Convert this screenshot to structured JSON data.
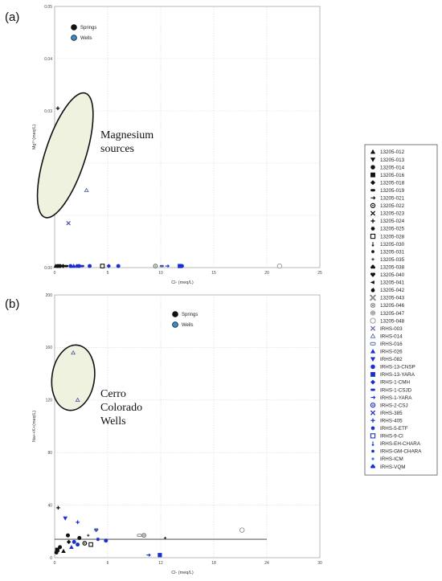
{
  "figure": {
    "panels": [
      "(a)",
      "(b)"
    ]
  },
  "legend": {
    "title": "",
    "items": [
      {
        "label": "13205-012",
        "marker": "triangle-up",
        "color": "#111111"
      },
      {
        "label": "13205-013",
        "marker": "triangle-down",
        "color": "#111111"
      },
      {
        "label": "13205-014",
        "marker": "circle",
        "color": "#111111"
      },
      {
        "label": "13205-016",
        "marker": "square",
        "color": "#111111"
      },
      {
        "label": "13205-018",
        "marker": "diamond",
        "color": "#111111"
      },
      {
        "label": "13205-019",
        "marker": "dash",
        "color": "#111111"
      },
      {
        "label": "13205-021",
        "marker": "arrow",
        "color": "#111111"
      },
      {
        "label": "13205-022",
        "marker": "ring",
        "color": "#111111"
      },
      {
        "label": "13205-023",
        "marker": "x",
        "color": "#111111"
      },
      {
        "label": "13205-024",
        "marker": "plus",
        "color": "#111111"
      },
      {
        "label": "13205-025",
        "marker": "burst",
        "color": "#111111"
      },
      {
        "label": "13205-028",
        "marker": "square-open",
        "color": "#111111"
      },
      {
        "label": "13205-030",
        "marker": "spike",
        "color": "#111111"
      },
      {
        "label": "13205-031",
        "marker": "small-dot",
        "color": "#111111"
      },
      {
        "label": "13205-035",
        "marker": "small-plus",
        "color": "#111111"
      },
      {
        "label": "13205-038",
        "marker": "club",
        "color": "#111111"
      },
      {
        "label": "13205-040",
        "marker": "heart",
        "color": "#111111"
      },
      {
        "label": "13205-041",
        "marker": "arrow-left",
        "color": "#111111"
      },
      {
        "label": "13205-042",
        "marker": "apple",
        "color": "#111111"
      },
      {
        "label": "13205-043",
        "marker": "x-large",
        "color": "#888888"
      },
      {
        "label": "13205-046",
        "marker": "circle-x",
        "color": "#777777"
      },
      {
        "label": "13205-047",
        "marker": "circle-plus",
        "color": "#777777"
      },
      {
        "label": "13205-048",
        "marker": "circle-open",
        "color": "#888888"
      },
      {
        "label": "IRHS-003",
        "marker": "x",
        "color": "#6a6ab0"
      },
      {
        "label": "IRHS-014",
        "marker": "triangle-open",
        "color": "#4a5aa8"
      },
      {
        "label": "IRHS-016",
        "marker": "pill-open",
        "color": "#4a5aa8"
      },
      {
        "label": "IRHS-026",
        "marker": "triangle-up",
        "color": "#1a2fd0"
      },
      {
        "label": "IRHS-082",
        "marker": "triangle-down",
        "color": "#1a2fd0"
      },
      {
        "label": "IRHS-13-CNSP",
        "marker": "circle",
        "color": "#1a2fd0"
      },
      {
        "label": "IRHS-13-YARA",
        "marker": "square",
        "color": "#1a2fd0"
      },
      {
        "label": "IRHS-1-CMH",
        "marker": "diamond",
        "color": "#1a2fd0"
      },
      {
        "label": "IRHS-1-CSJD",
        "marker": "dash",
        "color": "#1a2fd0"
      },
      {
        "label": "IRHS-1-YARA",
        "marker": "arrow",
        "color": "#1a2fd0"
      },
      {
        "label": "IRHS-2-CSJ",
        "marker": "ring",
        "color": "#1a2fd0"
      },
      {
        "label": "IRHS-385",
        "marker": "x",
        "color": "#1a2fd0"
      },
      {
        "label": "IRHS-405",
        "marker": "plus",
        "color": "#1a2fd0"
      },
      {
        "label": "IRHS-5-ETF",
        "marker": "burst",
        "color": "#1a2fd0"
      },
      {
        "label": "IRHS-9-Cl",
        "marker": "square-open",
        "color": "#1a2fd0"
      },
      {
        "label": "IRHS-EH-CHARA",
        "marker": "spike",
        "color": "#1a2fd0"
      },
      {
        "label": "IRHS-GM-CHARA",
        "marker": "small-dot",
        "color": "#1a2fd0"
      },
      {
        "label": "IRHS-ICM",
        "marker": "small-plus",
        "color": "#1a2fd0"
      },
      {
        "label": "IRHS-VQM",
        "marker": "club",
        "color": "#1a2fd0"
      }
    ]
  },
  "chart_data": [
    {
      "type": "scatter",
      "panel": "(a)",
      "title": "",
      "xlabel": "Cl- (meq/L)",
      "ylabel": "Mg²⁺(meq/L)",
      "xlim": [
        0,
        25
      ],
      "ylim": [
        0,
        0.05
      ],
      "xticks": [
        0,
        5,
        10,
        15,
        20,
        25
      ],
      "yticks": [
        0,
        0.01,
        0.02,
        0.03,
        0.04,
        0.05
      ],
      "xtick_labels": [
        "0",
        "5",
        "10",
        "15",
        "20",
        "25"
      ],
      "ytick_labels": [
        "0.00",
        "0.01",
        "0.02",
        "0.03",
        "0.04",
        "0.05"
      ],
      "grid": true,
      "legend": {
        "placement": "top-left",
        "entries": [
          {
            "label": "Springs",
            "color": "#111111"
          },
          {
            "label": "Wells",
            "color": "#2f8fd0"
          }
        ]
      },
      "annotation": {
        "lines": [
          "Magnesium",
          "sources"
        ]
      },
      "ellipse": {
        "cx": 1.0,
        "cy": 0.0215,
        "rx": 1.9,
        "ry": 0.0125,
        "rotate": 18
      },
      "points": [
        {
          "x": 0.3,
          "y": 0.0305,
          "marker": "plus",
          "color": "#111111"
        },
        {
          "x": 3.0,
          "y": 0.0148,
          "marker": "triangle-open",
          "color": "#4a5aa8"
        },
        {
          "x": 1.3,
          "y": 0.0085,
          "marker": "x",
          "color": "#4a5aa8"
        },
        {
          "x": 0.1,
          "y": 0.0003,
          "marker": "triangle-up",
          "color": "#111111"
        },
        {
          "x": 0.3,
          "y": 0.0003,
          "marker": "circle",
          "color": "#111111"
        },
        {
          "x": 0.5,
          "y": 0.0003,
          "marker": "circle",
          "color": "#111111"
        },
        {
          "x": 0.8,
          "y": 0.0003,
          "marker": "diamond",
          "color": "#111111"
        },
        {
          "x": 1.1,
          "y": 0.0003,
          "marker": "dash",
          "color": "#111111"
        },
        {
          "x": 1.5,
          "y": 0.0003,
          "marker": "circle",
          "color": "#1a2fd0"
        },
        {
          "x": 1.8,
          "y": 0.0003,
          "marker": "triangle-up",
          "color": "#1a2fd0"
        },
        {
          "x": 2.1,
          "y": 0.0003,
          "marker": "diamond",
          "color": "#1a2fd0"
        },
        {
          "x": 2.3,
          "y": 0.0003,
          "marker": "circle",
          "color": "#1a2fd0"
        },
        {
          "x": 2.6,
          "y": 0.0003,
          "marker": "dash",
          "color": "#1a2fd0"
        },
        {
          "x": 3.3,
          "y": 0.0003,
          "marker": "circle",
          "color": "#1a2fd0"
        },
        {
          "x": 4.5,
          "y": 0.0003,
          "marker": "square-open",
          "color": "#111111"
        },
        {
          "x": 5.1,
          "y": 0.0003,
          "marker": "diamond",
          "color": "#1a2fd0"
        },
        {
          "x": 6.0,
          "y": 0.0003,
          "marker": "circle",
          "color": "#1a2fd0"
        },
        {
          "x": 9.5,
          "y": 0.0003,
          "marker": "ring",
          "color": "#777777"
        },
        {
          "x": 10.1,
          "y": 0.0003,
          "marker": "dash",
          "color": "#4a5aa8"
        },
        {
          "x": 10.6,
          "y": 0.0003,
          "marker": "arrow",
          "color": "#1a2fd0"
        },
        {
          "x": 11.8,
          "y": 0.0003,
          "marker": "square",
          "color": "#1a2fd0"
        },
        {
          "x": 12.0,
          "y": 0.0003,
          "marker": "circle",
          "color": "#1a2fd0"
        },
        {
          "x": 21.2,
          "y": 0.0003,
          "marker": "circle-open",
          "color": "#888888"
        }
      ]
    },
    {
      "type": "scatter",
      "panel": "(b)",
      "title": "",
      "xlabel": "Cl- (meq/L)",
      "ylabel": "Na++K+(meq/L)",
      "xlim": [
        0,
        30
      ],
      "ylim": [
        0,
        200
      ],
      "xticks": [
        0,
        6,
        12,
        18,
        24,
        30
      ],
      "yticks": [
        0,
        40,
        80,
        120,
        160,
        200
      ],
      "xtick_labels": [
        "0",
        "6",
        "12",
        "18",
        "24",
        "30"
      ],
      "ytick_labels": [
        "0",
        "40",
        "80",
        "120",
        "160",
        "200"
      ],
      "grid": true,
      "legend": {
        "placement": "top-center",
        "entries": [
          {
            "label": "Springs",
            "color": "#111111"
          },
          {
            "label": "Wells",
            "color": "#2f8fd0"
          }
        ]
      },
      "annotation": {
        "lines": [
          "Cerro",
          "Colorado",
          "Wells"
        ]
      },
      "ellipse": {
        "cx": 2.1,
        "cy": 137,
        "rx": 2.4,
        "ry": 25,
        "rotate": 8
      },
      "trendline": {
        "x": [
          0,
          24
        ],
        "y": [
          14,
          14
        ]
      },
      "points": [
        {
          "x": 2.1,
          "y": 156,
          "marker": "triangle-open",
          "color": "#4a5aa8"
        },
        {
          "x": 2.6,
          "y": 120,
          "marker": "triangle-open",
          "color": "#4a5aa8"
        },
        {
          "x": 0.4,
          "y": 38,
          "marker": "plus",
          "color": "#111111"
        },
        {
          "x": 1.2,
          "y": 30,
          "marker": "triangle-down",
          "color": "#1a2fd0"
        },
        {
          "x": 2.6,
          "y": 27,
          "marker": "plus",
          "color": "#1a2fd0"
        },
        {
          "x": 4.7,
          "y": 21,
          "marker": "heart",
          "color": "#4a5aa8"
        },
        {
          "x": 3.8,
          "y": 17,
          "marker": "small-plus",
          "color": "#111111"
        },
        {
          "x": 1.5,
          "y": 17,
          "marker": "circle",
          "color": "#111111"
        },
        {
          "x": 2.8,
          "y": 15,
          "marker": "circle",
          "color": "#111111"
        },
        {
          "x": 2.2,
          "y": 12,
          "marker": "circle",
          "color": "#1a2fd0"
        },
        {
          "x": 2.6,
          "y": 10,
          "marker": "circle",
          "color": "#1a2fd0"
        },
        {
          "x": 1.9,
          "y": 8,
          "marker": "triangle-up",
          "color": "#1a2fd0"
        },
        {
          "x": 1.6,
          "y": 12,
          "marker": "diamond",
          "color": "#111111"
        },
        {
          "x": 3.4,
          "y": 11,
          "marker": "ring",
          "color": "#111111"
        },
        {
          "x": 4.1,
          "y": 10,
          "marker": "square-open",
          "color": "#111111"
        },
        {
          "x": 5.8,
          "y": 13,
          "marker": "circle",
          "color": "#1a2fd0"
        },
        {
          "x": 4.9,
          "y": 14,
          "marker": "burst",
          "color": "#1a2fd0"
        },
        {
          "x": 0.3,
          "y": 6,
          "marker": "square",
          "color": "#111111"
        },
        {
          "x": 0.6,
          "y": 8,
          "marker": "circle",
          "color": "#111111"
        },
        {
          "x": 0.2,
          "y": 4,
          "marker": "circle",
          "color": "#111111"
        },
        {
          "x": 1.0,
          "y": 5,
          "marker": "triangle-up",
          "color": "#111111"
        },
        {
          "x": 9.6,
          "y": 17,
          "marker": "pill-open",
          "color": "#777777"
        },
        {
          "x": 10.1,
          "y": 17,
          "marker": "ring",
          "color": "#777777"
        },
        {
          "x": 10.6,
          "y": 2,
          "marker": "arrow",
          "color": "#1a2fd0"
        },
        {
          "x": 11.9,
          "y": 2,
          "marker": "square",
          "color": "#1a2fd0"
        },
        {
          "x": 12.5,
          "y": 15,
          "marker": "small-plus",
          "color": "#111111"
        },
        {
          "x": 21.2,
          "y": 21,
          "marker": "circle-open",
          "color": "#888888"
        }
      ]
    }
  ]
}
